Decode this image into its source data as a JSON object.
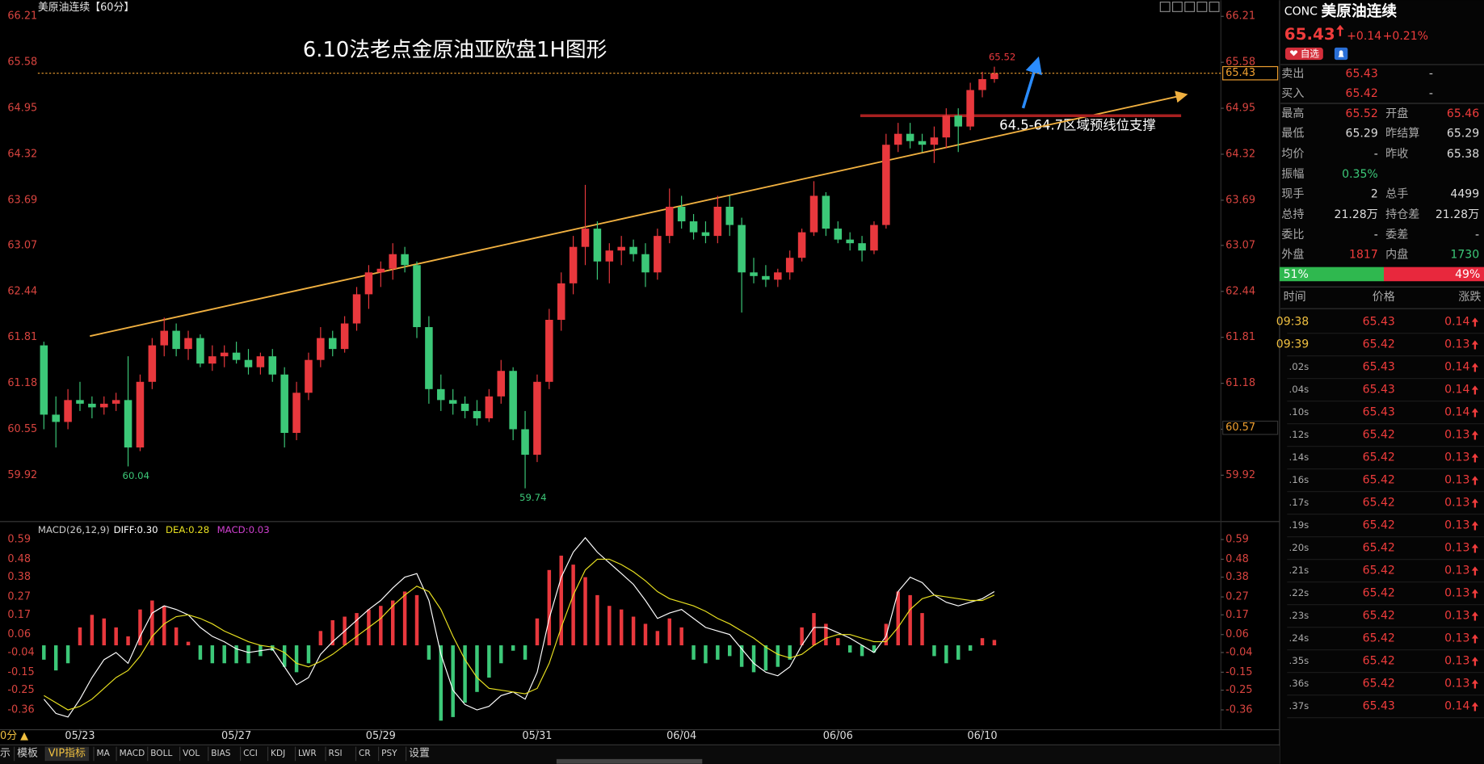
{
  "chart_data": [
    {
      "type": "candlestick",
      "title": "美原油连续【60分】",
      "annotations": [
        "6.10法老点金原油亚欧盘1H图形",
        "64.5-64.7区域预线位支撑"
      ],
      "categories": [
        null,
        null,
        null,
        "05/23",
        null,
        null,
        null,
        null,
        null,
        null,
        null,
        null,
        null,
        null,
        null,
        null,
        "05/27",
        null,
        null,
        null,
        null,
        null,
        null,
        null,
        null,
        null,
        null,
        null,
        "05/29",
        null,
        null,
        null,
        null,
        null,
        null,
        null,
        null,
        null,
        null,
        null,
        null,
        "05/31",
        null,
        null,
        null,
        null,
        null,
        null,
        null,
        null,
        null,
        null,
        null,
        "06/04",
        null,
        null,
        null,
        null,
        null,
        null,
        null,
        null,
        null,
        null,
        null,
        null,
        "06/06",
        null,
        null,
        null,
        null,
        null,
        null,
        null,
        null,
        null,
        null,
        null,
        "06/10",
        null
      ],
      "open": [
        61.7,
        60.75,
        60.65,
        60.95,
        60.9,
        60.85,
        60.9,
        60.95,
        60.3,
        61.2,
        61.7,
        61.9,
        61.65,
        61.8,
        61.45,
        61.55,
        61.6,
        61.5,
        61.4,
        61.55,
        61.3,
        60.5,
        61.05,
        61.5,
        61.8,
        61.65,
        62.0,
        62.4,
        62.7,
        62.75,
        62.95,
        62.8,
        61.95,
        61.1,
        60.95,
        60.9,
        60.8,
        60.7,
        61.0,
        61.35,
        60.55,
        60.2,
        61.2,
        62.05,
        62.55,
        63.05,
        63.3,
        62.85,
        63.0,
        63.05,
        62.95,
        62.7,
        63.2,
        63.6,
        63.4,
        63.25,
        63.2,
        63.6,
        63.35,
        62.7,
        62.65,
        62.6,
        62.7,
        62.9,
        63.25,
        63.75,
        63.3,
        63.15,
        63.1,
        63.0,
        63.35,
        64.45,
        64.6,
        64.5,
        64.45,
        64.55,
        64.85,
        64.7,
        65.2,
        65.35
      ],
      "high": [
        61.75,
        61.0,
        61.1,
        61.2,
        61.0,
        61.0,
        61.05,
        61.55,
        61.3,
        61.8,
        62.08,
        62.0,
        61.9,
        61.85,
        61.7,
        61.7,
        61.75,
        61.65,
        61.6,
        61.65,
        61.4,
        61.2,
        61.6,
        61.95,
        61.9,
        62.1,
        62.5,
        62.8,
        62.85,
        63.1,
        63.05,
        62.85,
        62.1,
        61.3,
        61.1,
        61.0,
        60.95,
        61.1,
        61.5,
        61.4,
        60.8,
        61.3,
        62.2,
        62.7,
        63.2,
        63.9,
        63.4,
        63.1,
        63.2,
        63.15,
        63.1,
        63.3,
        63.85,
        63.75,
        63.5,
        63.4,
        63.75,
        63.75,
        63.45,
        62.9,
        62.8,
        62.75,
        63.0,
        63.3,
        63.95,
        63.8,
        63.4,
        63.25,
        63.2,
        63.4,
        64.6,
        64.75,
        64.75,
        64.6,
        64.7,
        64.95,
        64.95,
        65.3,
        65.45,
        65.52
      ],
      "low": [
        60.55,
        60.3,
        60.55,
        60.8,
        60.7,
        60.75,
        60.8,
        60.04,
        60.25,
        61.1,
        61.55,
        61.55,
        61.5,
        61.4,
        61.35,
        61.4,
        61.45,
        61.3,
        61.3,
        61.2,
        60.3,
        60.4,
        60.95,
        61.4,
        61.55,
        61.6,
        61.9,
        62.2,
        62.5,
        62.6,
        62.7,
        61.8,
        60.9,
        60.8,
        60.75,
        60.7,
        60.6,
        60.65,
        60.9,
        60.4,
        59.74,
        60.1,
        61.1,
        61.9,
        62.4,
        62.8,
        62.6,
        62.55,
        62.8,
        62.85,
        62.5,
        62.6,
        63.1,
        63.3,
        63.15,
        63.1,
        63.1,
        63.2,
        62.15,
        62.55,
        62.5,
        62.5,
        62.6,
        62.85,
        63.2,
        63.2,
        63.1,
        63.0,
        62.85,
        62.95,
        63.3,
        64.35,
        64.4,
        64.35,
        64.2,
        64.4,
        64.35,
        64.65,
        65.1,
        65.3
      ],
      "close": [
        60.75,
        60.65,
        60.95,
        60.9,
        60.85,
        60.9,
        60.95,
        60.3,
        61.2,
        61.7,
        61.9,
        61.65,
        61.8,
        61.45,
        61.55,
        61.6,
        61.5,
        61.4,
        61.55,
        61.3,
        60.5,
        61.05,
        61.5,
        61.8,
        61.65,
        62.0,
        62.4,
        62.7,
        62.75,
        62.95,
        62.8,
        61.95,
        61.1,
        60.95,
        60.9,
        60.8,
        60.7,
        61.0,
        61.35,
        60.55,
        60.2,
        61.2,
        62.05,
        62.55,
        63.05,
        63.3,
        62.85,
        63.0,
        63.05,
        62.95,
        62.7,
        63.2,
        63.6,
        63.4,
        63.25,
        63.2,
        63.6,
        63.35,
        62.7,
        62.65,
        62.6,
        62.7,
        62.9,
        63.25,
        63.75,
        63.3,
        63.15,
        63.1,
        63.0,
        63.35,
        64.45,
        64.6,
        64.5,
        64.45,
        64.55,
        64.85,
        64.7,
        65.2,
        65.35,
        65.43
      ],
      "up_color": "#e8383d",
      "down_color": "#3cc878",
      "last_price_color": "#f0a030",
      "marker_price": 60.57,
      "ylim": [
        59.3,
        66.4
      ],
      "yticks": [
        59.92,
        60.55,
        61.18,
        61.81,
        62.44,
        63.07,
        63.69,
        64.32,
        64.95,
        65.58,
        66.21
      ]
    },
    {
      "type": "macd",
      "title": "MACD(26,12,9)",
      "series": [
        {
          "name": "DIFF:0.30",
          "color": "#ffffff",
          "values": [
            -0.3,
            -0.38,
            -0.4,
            -0.3,
            -0.18,
            -0.08,
            -0.04,
            -0.1,
            0.05,
            0.18,
            0.22,
            0.2,
            0.17,
            0.1,
            0.05,
            0.02,
            -0.02,
            -0.04,
            -0.03,
            -0.02,
            -0.12,
            -0.22,
            -0.18,
            -0.05,
            0.02,
            0.08,
            0.14,
            0.2,
            0.25,
            0.32,
            0.38,
            0.4,
            0.25,
            -0.05,
            -0.25,
            -0.33,
            -0.36,
            -0.34,
            -0.28,
            -0.26,
            -0.3,
            -0.15,
            0.15,
            0.38,
            0.52,
            0.6,
            0.52,
            0.46,
            0.4,
            0.34,
            0.25,
            0.15,
            0.18,
            0.2,
            0.15,
            0.1,
            0.08,
            0.06,
            -0.02,
            -0.1,
            -0.15,
            -0.17,
            -0.12,
            0.0,
            0.1,
            0.1,
            0.07,
            0.04,
            0.0,
            -0.04,
            0.05,
            0.3,
            0.38,
            0.35,
            0.28,
            0.24,
            0.22,
            0.24,
            0.26,
            0.3
          ]
        },
        {
          "name": "DEA:0.28",
          "color": "#e8e020",
          "values": [
            -0.28,
            -0.32,
            -0.36,
            -0.34,
            -0.3,
            -0.24,
            -0.18,
            -0.14,
            -0.06,
            0.05,
            0.12,
            0.16,
            0.17,
            0.15,
            0.12,
            0.08,
            0.05,
            0.02,
            0.0,
            -0.01,
            -0.04,
            -0.1,
            -0.12,
            -0.09,
            -0.05,
            0.0,
            0.05,
            0.1,
            0.15,
            0.22,
            0.28,
            0.33,
            0.3,
            0.2,
            0.05,
            -0.08,
            -0.18,
            -0.24,
            -0.25,
            -0.26,
            -0.27,
            -0.24,
            -0.1,
            0.1,
            0.28,
            0.42,
            0.48,
            0.48,
            0.45,
            0.41,
            0.36,
            0.3,
            0.26,
            0.24,
            0.22,
            0.19,
            0.15,
            0.12,
            0.08,
            0.04,
            -0.01,
            -0.05,
            -0.07,
            -0.05,
            0.0,
            0.04,
            0.06,
            0.06,
            0.04,
            0.02,
            0.02,
            0.1,
            0.2,
            0.26,
            0.28,
            0.27,
            0.26,
            0.25,
            0.25,
            0.28
          ]
        },
        {
          "name": "MACD:0.03",
          "color": "#d040d0",
          "kind": "histogram",
          "values": [
            -0.08,
            -0.14,
            -0.1,
            0.1,
            0.17,
            0.15,
            0.1,
            0.05,
            0.2,
            0.25,
            0.22,
            0.1,
            0.02,
            -0.08,
            -0.1,
            -0.1,
            -0.1,
            -0.1,
            -0.06,
            -0.03,
            -0.12,
            -0.15,
            -0.1,
            0.08,
            0.14,
            0.16,
            0.18,
            0.2,
            0.22,
            0.25,
            0.3,
            0.28,
            -0.08,
            -0.42,
            -0.4,
            -0.32,
            -0.26,
            -0.18,
            -0.1,
            -0.03,
            -0.08,
            0.15,
            0.42,
            0.5,
            0.45,
            0.38,
            0.28,
            0.22,
            0.2,
            0.16,
            0.12,
            0.08,
            0.15,
            0.1,
            -0.08,
            -0.1,
            -0.08,
            -0.06,
            -0.12,
            -0.15,
            -0.14,
            -0.12,
            -0.08,
            0.1,
            0.18,
            0.12,
            0.04,
            -0.04,
            -0.06,
            -0.04,
            0.12,
            0.3,
            0.28,
            0.18,
            -0.06,
            -0.1,
            -0.08,
            -0.03,
            0.04,
            0.03
          ]
        }
      ],
      "up_color": "#e8383d",
      "down_color": "#3cc878",
      "ylim": [
        -0.47,
        0.62
      ],
      "yticks": [
        -0.36,
        -0.25,
        -0.15,
        -0.04,
        0.06,
        0.17,
        0.27,
        0.38,
        0.48,
        0.59
      ]
    }
  ],
  "toolbar": {
    "period": "0分 ▲",
    "tabs": [
      "示",
      "模板",
      "VIP指标",
      "MA",
      "MACD",
      "BOLL",
      "VOL",
      "BIAS",
      "CCI",
      "KDJ",
      "LWR",
      "RSI",
      "CR",
      "PSY",
      "设置"
    ]
  },
  "quote": {
    "code": "CONC",
    "name": "美原油连续",
    "price": "65.43",
    "change": "+0.14",
    "change_pct": "+0.21%",
    "button": "自选",
    "rows": [
      [
        "卖出",
        "65.43",
        "-"
      ],
      [
        "买入",
        "65.42",
        "-"
      ],
      [
        "最高",
        "65.52",
        "开盘",
        "65.46"
      ],
      [
        "最低",
        "65.29",
        "昨结算",
        "65.29"
      ],
      [
        "均价",
        "-",
        "昨收",
        "65.38"
      ],
      [
        "振幅",
        "0.35%"
      ],
      [
        "现手",
        "2",
        "总手",
        "4499"
      ],
      [
        "总持",
        "21.28万",
        "持仓差",
        "21.28万"
      ],
      [
        "委比",
        "-",
        "委差",
        "-"
      ],
      [
        "外盘",
        "1817",
        "内盘",
        "1730"
      ]
    ],
    "buy_share": {
      "value": 51,
      "label": "51%"
    },
    "sell_share": {
      "value": 49,
      "label": "49%"
    },
    "tick_header": [
      "时间",
      "价格",
      "涨跌"
    ],
    "ticks": [
      [
        "09:38",
        "65.43",
        "0.14"
      ],
      [
        "09:39",
        "65.42",
        "0.13"
      ],
      [
        ".02s",
        "65.43",
        "0.14"
      ],
      [
        ".04s",
        "65.43",
        "0.14"
      ],
      [
        ".10s",
        "65.43",
        "0.14"
      ],
      [
        ".12s",
        "65.42",
        "0.13"
      ],
      [
        ".14s",
        "65.42",
        "0.13"
      ],
      [
        ".16s",
        "65.42",
        "0.13"
      ],
      [
        ".17s",
        "65.42",
        "0.13"
      ],
      [
        ".19s",
        "65.42",
        "0.13"
      ],
      [
        ".20s",
        "65.42",
        "0.13"
      ],
      [
        ".21s",
        "65.42",
        "0.13"
      ],
      [
        ".22s",
        "65.42",
        "0.13"
      ],
      [
        ".23s",
        "65.42",
        "0.13"
      ],
      [
        ".24s",
        "65.42",
        "0.13"
      ],
      [
        ".35s",
        "65.42",
        "0.13"
      ],
      [
        ".36s",
        "65.42",
        "0.13"
      ],
      [
        ".37s",
        "65.43",
        "0.14"
      ]
    ]
  }
}
